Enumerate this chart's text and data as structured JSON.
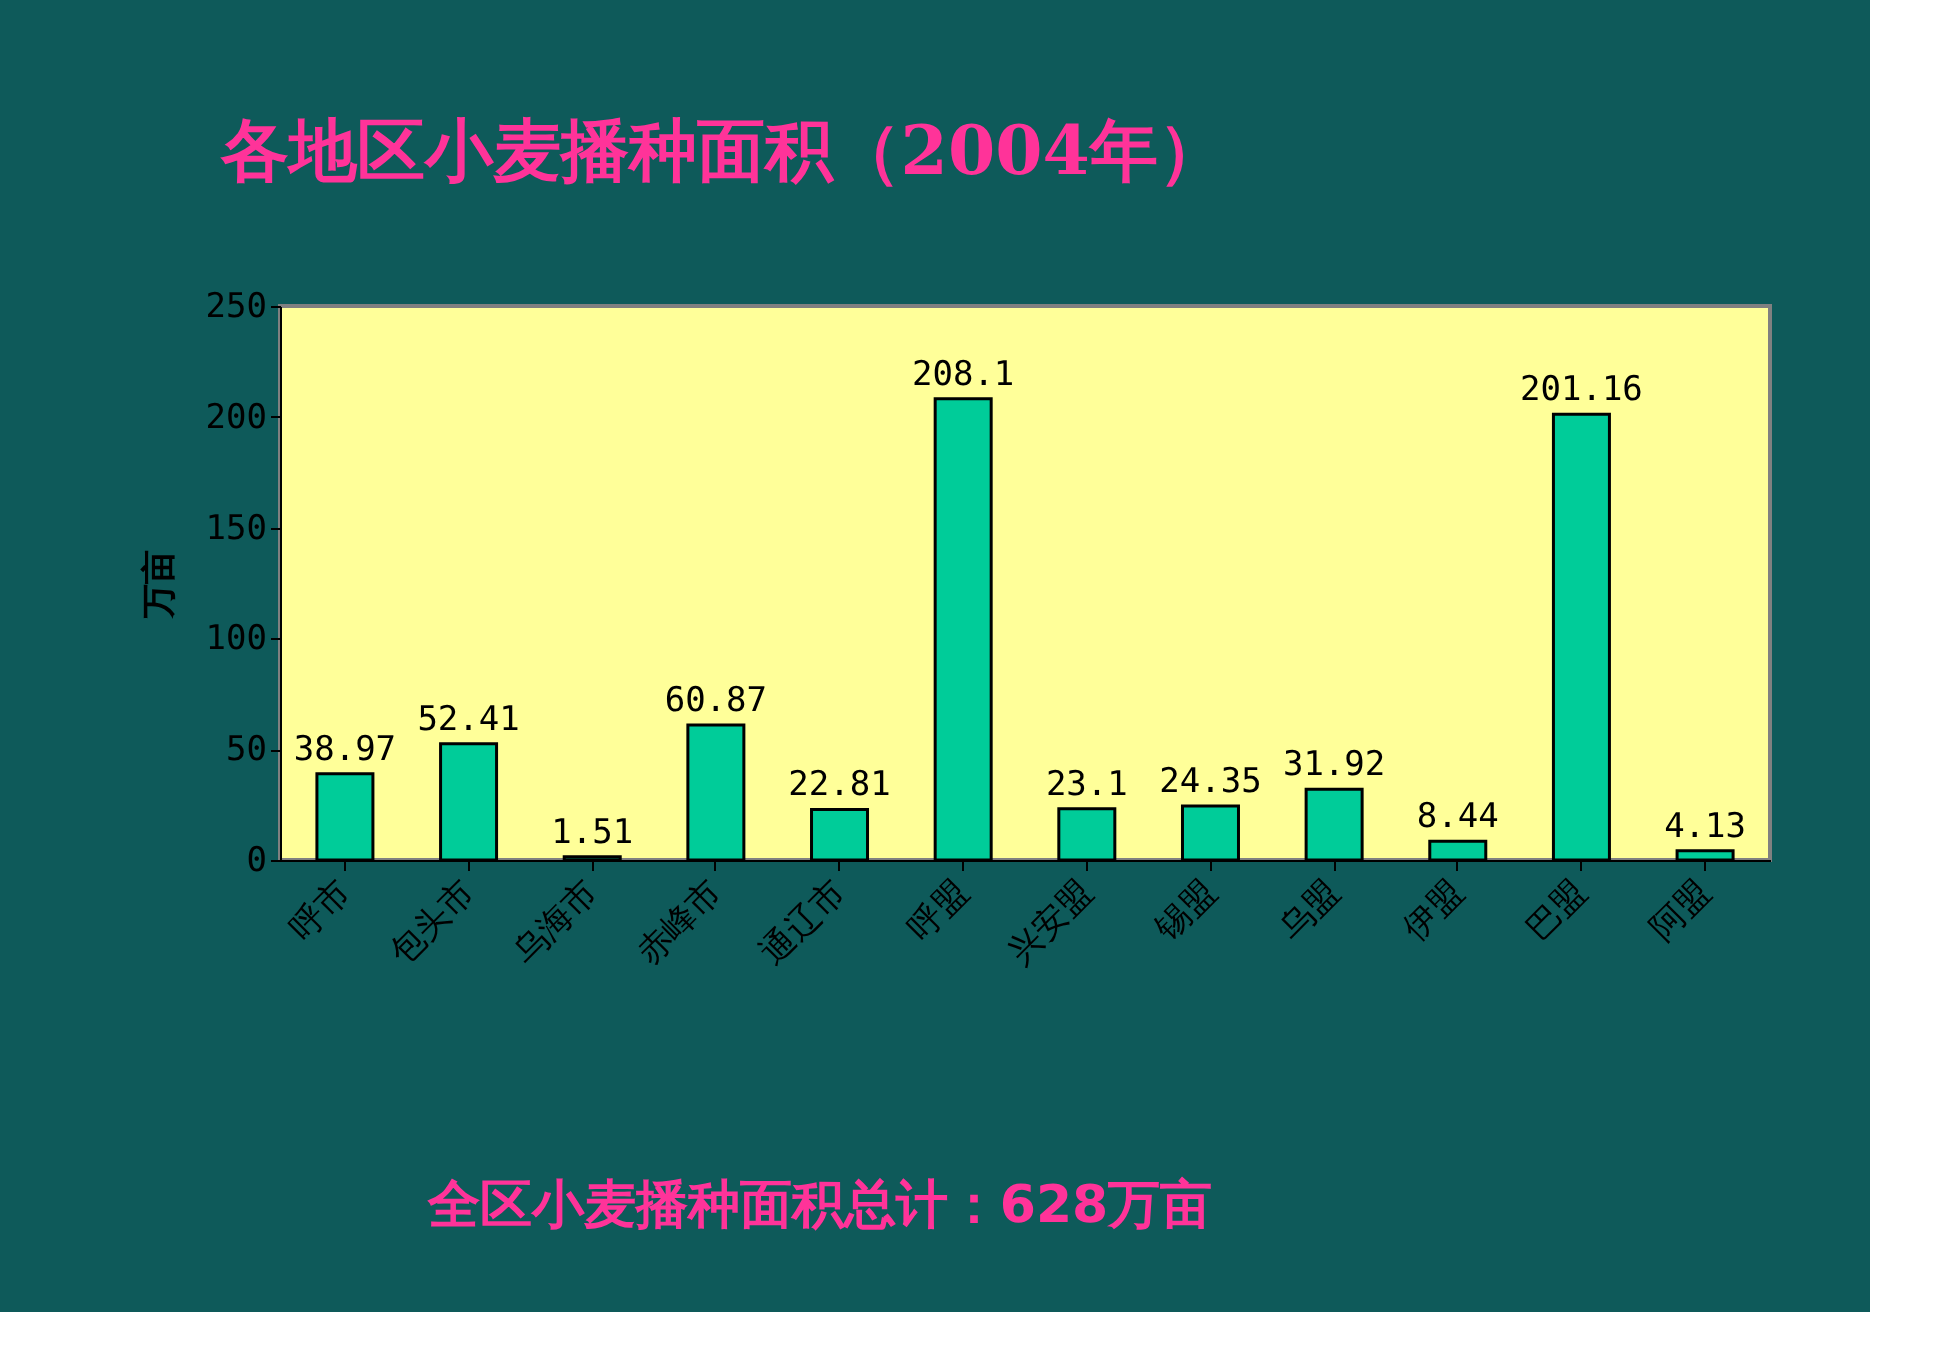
{
  "chart_data": {
    "type": "bar",
    "title": "各地区小麦播种面积（2004年）",
    "categories": [
      "呼市",
      "包头市",
      "乌海市",
      "赤峰市",
      "通辽市",
      "呼盟",
      "兴安盟",
      "锡盟",
      "乌盟",
      "伊盟",
      "巴盟",
      "阿盟"
    ],
    "values": [
      38.97,
      52.41,
      1.51,
      60.87,
      22.81,
      208.1,
      23.1,
      24.35,
      31.92,
      8.44,
      201.16,
      4.13
    ],
    "color": "#00cc99",
    "ylabel": "万亩",
    "ylim": [
      0,
      250
    ],
    "yticks": [
      0,
      50,
      100,
      150,
      200,
      250
    ],
    "data_labels": true,
    "grid": false,
    "annotations": [
      "全区小麦播种面积总计：628万亩"
    ]
  }
}
